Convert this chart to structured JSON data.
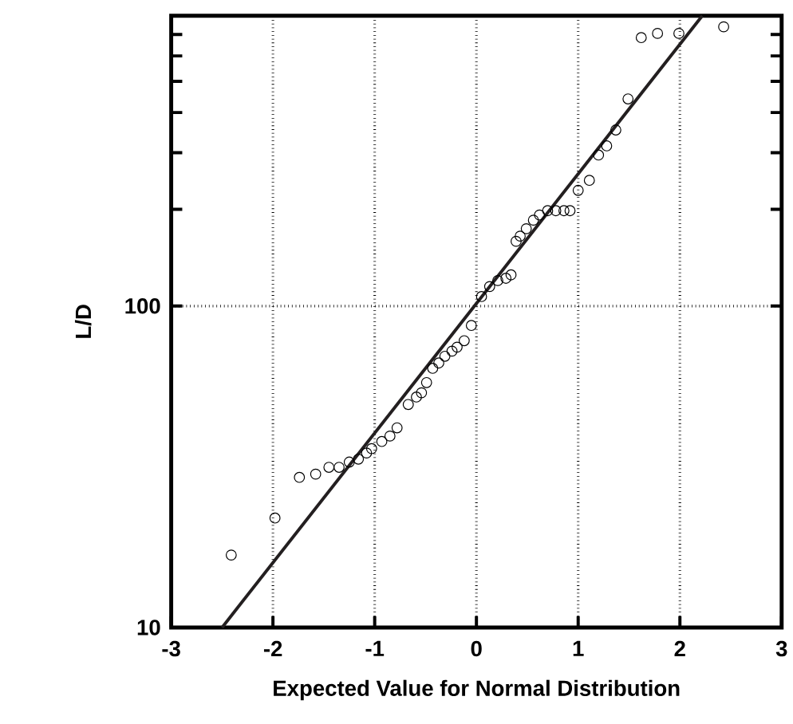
{
  "chart_data": {
    "type": "scatter",
    "xlabel": "Expected Value for Normal Distribution",
    "ylabel": "L/D",
    "xlim": [
      -3,
      3
    ],
    "ylim": [
      10,
      800
    ],
    "log": "y",
    "grid": true,
    "xticks": [
      -3,
      -2,
      -1,
      0,
      1,
      2,
      3
    ],
    "yticks": [
      10,
      100,
      {
        "value": 200,
        "label": null
      },
      {
        "value": 300,
        "label": null
      },
      {
        "value": 400,
        "label": null
      },
      {
        "value": 500,
        "label": null
      },
      {
        "value": 600,
        "label": null
      },
      {
        "value": 700,
        "label": null
      }
    ],
    "series": [
      {
        "color": "#000000",
        "marker": "circle",
        "x": [
          -2.41,
          -1.98,
          -1.74,
          -1.58,
          -1.45,
          -1.35,
          -1.25,
          -1.16,
          -1.08,
          -1.03,
          -0.93,
          -0.85,
          -0.78,
          -0.67,
          -0.59,
          -0.54,
          -0.49,
          -0.43,
          -0.37,
          -0.31,
          -0.24,
          -0.19,
          -0.12,
          -0.05,
          0.05,
          0.13,
          0.21,
          0.29,
          0.34,
          0.39,
          0.43,
          0.49,
          0.56,
          0.62,
          0.7,
          0.78,
          0.86,
          0.92,
          1.0,
          1.11,
          1.2,
          1.28,
          1.37,
          1.49,
          1.62,
          1.78,
          1.99,
          2.43
        ],
        "values": [
          16.8,
          21.9,
          29.3,
          30.0,
          31.5,
          31.5,
          32.7,
          33.4,
          34.9,
          36,
          37.9,
          39.4,
          41.8,
          49.4,
          52.1,
          53.7,
          57.8,
          64,
          66.5,
          69.8,
          72.4,
          74.5,
          78,
          87,
          107,
          115,
          120,
          122,
          125,
          159,
          165,
          174,
          185,
          192,
          198,
          198,
          198,
          198,
          229,
          246,
          295,
          315,
          353,
          441,
          684,
          705,
          705,
          739
        ]
      },
      {
        "type": "line",
        "color": "#231f20",
        "x": [
          -2.5,
          2.22
        ],
        "values": [
          10,
          800
        ]
      }
    ]
  }
}
